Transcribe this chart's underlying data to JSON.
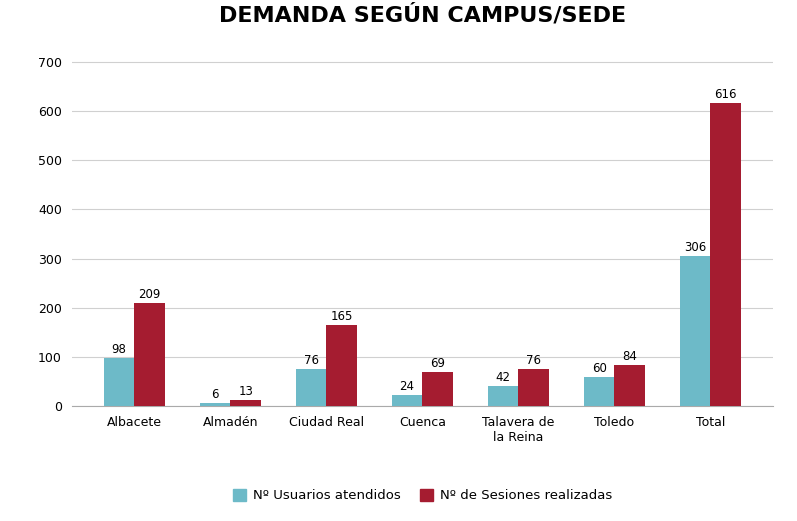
{
  "title": "DEMANDA SEGÚN CAMPUS/SEDE",
  "categories": [
    "Albacete",
    "Almadén",
    "Ciudad Real",
    "Cuenca",
    "Talavera de\nla Reina",
    "Toledo",
    "Total"
  ],
  "usuarios": [
    98,
    6,
    76,
    24,
    42,
    60,
    306
  ],
  "sesiones": [
    209,
    13,
    165,
    69,
    76,
    84,
    616
  ],
  "color_usuarios": "#6dbac8",
  "color_sesiones": "#a51c30",
  "bar_width": 0.32,
  "ylim": [
    0,
    730
  ],
  "yticks": [
    0,
    100,
    200,
    300,
    400,
    500,
    600,
    700
  ],
  "legend_label_usuarios": "Nº Usuarios atendidos",
  "legend_label_sesiones": "Nº de Sesiones realizadas",
  "title_fontsize": 16,
  "label_fontsize": 8.5,
  "tick_fontsize": 9,
  "legend_fontsize": 9.5,
  "background_color": "#ffffff",
  "grid_color": "#d0d0d0"
}
